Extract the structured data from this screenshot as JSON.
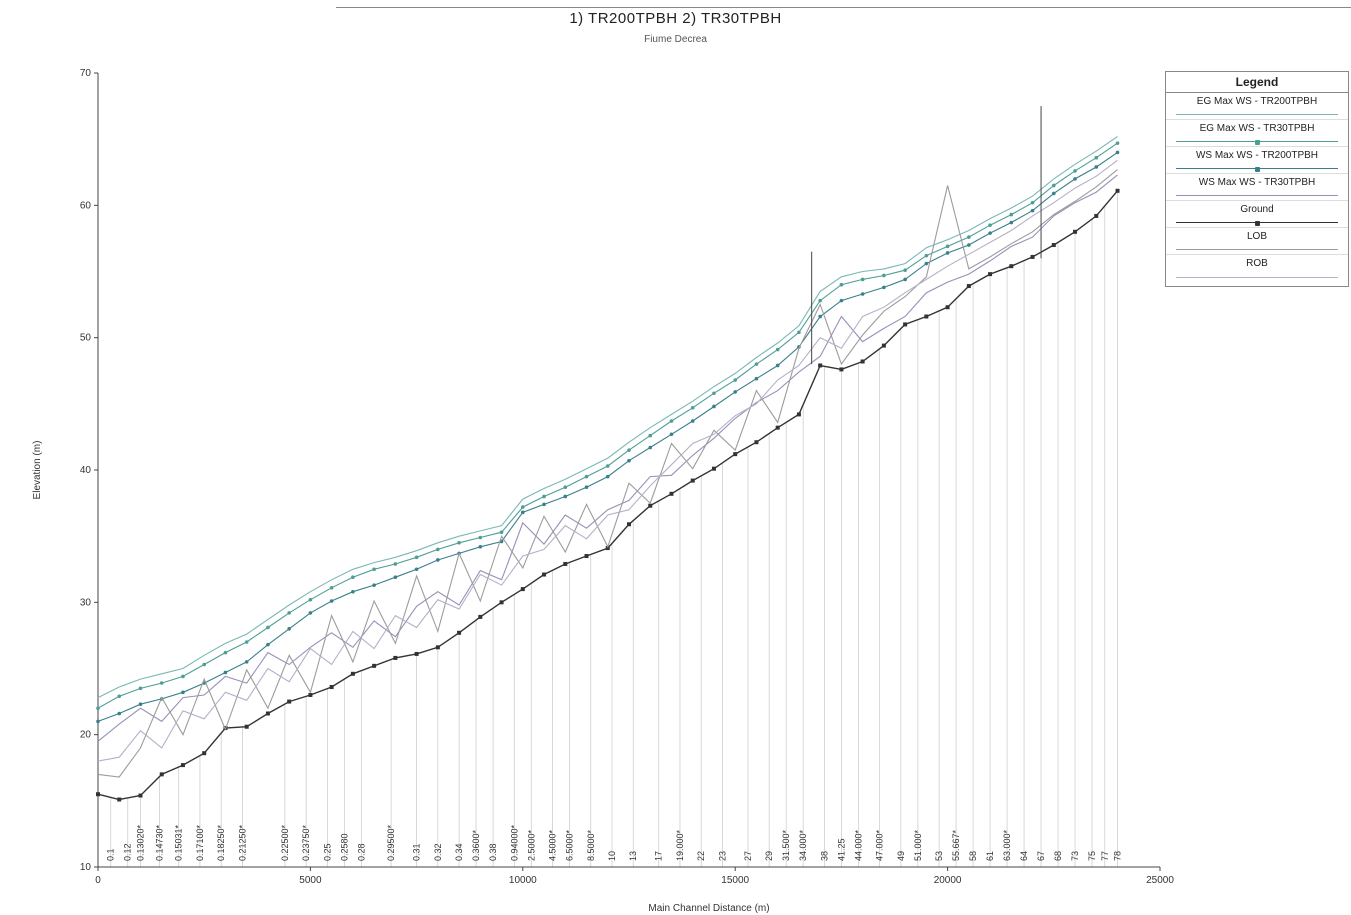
{
  "chart_data": {
    "type": "line",
    "title": "1) TR200TPBH   2) TR30TPBH",
    "subtitle": "Fiume Decrea",
    "xlabel": "Main Channel Distance (m)",
    "ylabel": "Elevation (m)",
    "xlim": [
      0,
      25000
    ],
    "ylim": [
      10,
      70
    ],
    "x_ticks": [
      0,
      5000,
      10000,
      15000,
      20000,
      25000
    ],
    "y_ticks": [
      10,
      20,
      30,
      40,
      50,
      60,
      70
    ],
    "grid": false,
    "legend_position": "right",
    "legend_title": "Legend",
    "series": [
      {
        "name": "EG  Max WS - TR200TPBH",
        "color": "#7ab8b5",
        "marker": "none",
        "x": [
          0,
          500,
          1000,
          1500,
          2000,
          2500,
          3000,
          3500,
          4000,
          4500,
          5000,
          5500,
          6000,
          6500,
          7000,
          7500,
          8000,
          8500,
          9000,
          9500,
          10000,
          10500,
          11000,
          11500,
          12000,
          12500,
          13000,
          13500,
          14000,
          14500,
          15000,
          15500,
          16000,
          16500,
          17000,
          17500,
          18000,
          18500,
          19000,
          19500,
          20000,
          20500,
          21000,
          21500,
          22000,
          22500,
          23000,
          23500,
          24000
        ],
        "y": [
          22.8,
          23.6,
          24.2,
          24.6,
          25.0,
          26.0,
          26.9,
          27.6,
          28.7,
          29.8,
          30.8,
          31.7,
          32.5,
          33.0,
          33.4,
          33.9,
          34.5,
          35.0,
          35.4,
          35.8,
          37.8,
          38.6,
          39.3,
          40.1,
          40.9,
          42.1,
          43.2,
          44.2,
          45.2,
          46.3,
          47.3,
          48.5,
          49.6,
          50.9,
          53.5,
          54.6,
          55.0,
          55.2,
          55.6,
          56.8,
          57.4,
          58.1,
          59.0,
          59.8,
          60.7,
          62.0,
          63.1,
          64.1,
          65.2
        ]
      },
      {
        "name": "EG  Max WS - TR30TPBH",
        "color": "#4e9e96",
        "marker": "dot",
        "x": [
          0,
          500,
          1000,
          1500,
          2000,
          2500,
          3000,
          3500,
          4000,
          4500,
          5000,
          5500,
          6000,
          6500,
          7000,
          7500,
          8000,
          8500,
          9000,
          9500,
          10000,
          10500,
          11000,
          11500,
          12000,
          12500,
          13000,
          13500,
          14000,
          14500,
          15000,
          15500,
          16000,
          16500,
          17000,
          17500,
          18000,
          18500,
          19000,
          19500,
          20000,
          20500,
          21000,
          21500,
          22000,
          22500,
          23000,
          23500,
          24000
        ],
        "y": [
          22.0,
          22.9,
          23.5,
          23.9,
          24.4,
          25.3,
          26.2,
          27.0,
          28.1,
          29.2,
          30.2,
          31.1,
          31.9,
          32.5,
          32.9,
          33.4,
          34.0,
          34.5,
          34.9,
          35.3,
          37.2,
          38.0,
          38.7,
          39.5,
          40.3,
          41.5,
          42.6,
          43.7,
          44.7,
          45.8,
          46.8,
          48.0,
          49.1,
          50.4,
          52.8,
          54.0,
          54.4,
          54.7,
          55.1,
          56.2,
          56.9,
          57.6,
          58.5,
          59.3,
          60.2,
          61.5,
          62.6,
          63.6,
          64.7
        ]
      },
      {
        "name": "WS  Max WS - TR200TPBH",
        "color": "#3a7f8c",
        "marker": "dot",
        "x": [
          0,
          500,
          1000,
          1500,
          2000,
          2500,
          3000,
          3500,
          4000,
          4500,
          5000,
          5500,
          6000,
          6500,
          7000,
          7500,
          8000,
          8500,
          9000,
          9500,
          10000,
          10500,
          11000,
          11500,
          12000,
          12500,
          13000,
          13500,
          14000,
          14500,
          15000,
          15500,
          16000,
          16500,
          17000,
          17500,
          18000,
          18500,
          19000,
          19500,
          20000,
          20500,
          21000,
          21500,
          22000,
          22500,
          23000,
          23500,
          24000
        ],
        "y": [
          21.0,
          21.6,
          22.3,
          22.7,
          23.2,
          23.9,
          24.7,
          25.5,
          26.8,
          28.0,
          29.2,
          30.1,
          30.8,
          31.3,
          31.9,
          32.5,
          33.2,
          33.7,
          34.2,
          34.6,
          36.8,
          37.4,
          38.0,
          38.7,
          39.5,
          40.7,
          41.7,
          42.7,
          43.7,
          44.8,
          45.9,
          46.9,
          47.9,
          49.3,
          51.6,
          52.8,
          53.3,
          53.8,
          54.4,
          55.6,
          56.4,
          57.0,
          57.9,
          58.7,
          59.6,
          60.9,
          62.0,
          62.9,
          64.0
        ]
      },
      {
        "name": "WS  Max WS - TR30TPBH",
        "color": "#9a8fb8",
        "marker": "none",
        "x": [
          0,
          500,
          1000,
          1500,
          2000,
          2500,
          3000,
          3500,
          4000,
          4500,
          5000,
          5500,
          6000,
          6500,
          7000,
          7500,
          8000,
          8500,
          9000,
          9500,
          10000,
          10500,
          11000,
          11500,
          12000,
          12500,
          13000,
          13500,
          14000,
          14500,
          15000,
          15500,
          16000,
          16500,
          17000,
          17500,
          18000,
          18500,
          19000,
          19500,
          20000,
          20500,
          21000,
          21500,
          22000,
          22500,
          23000,
          23500,
          24000
        ],
        "y": [
          19.5,
          20.8,
          22.0,
          21.0,
          22.8,
          23.0,
          24.4,
          23.9,
          26.2,
          25.3,
          26.6,
          27.7,
          26.6,
          28.6,
          27.4,
          29.7,
          30.8,
          29.8,
          32.4,
          31.7,
          36.0,
          34.4,
          36.6,
          35.6,
          37.0,
          37.7,
          39.5,
          39.6,
          41.1,
          42.4,
          43.9,
          45.1,
          46.0,
          47.4,
          48.6,
          51.6,
          49.7,
          50.7,
          51.6,
          53.4,
          54.2,
          54.8,
          55.8,
          56.9,
          57.6,
          59.2,
          60.2,
          61.0,
          62.3
        ]
      },
      {
        "name": "Ground",
        "color": "#333333",
        "marker": "square",
        "x": [
          0,
          500,
          1000,
          1500,
          2000,
          2500,
          3000,
          3500,
          4000,
          4500,
          5000,
          5500,
          6000,
          6500,
          7000,
          7500,
          8000,
          8500,
          9000,
          9500,
          10000,
          10500,
          11000,
          11500,
          12000,
          12500,
          13000,
          13500,
          14000,
          14500,
          15000,
          15500,
          16000,
          16500,
          17000,
          17500,
          18000,
          18500,
          19000,
          19500,
          20000,
          20500,
          21000,
          21500,
          22000,
          22500,
          23000,
          23500,
          24000
        ],
        "y": [
          15.5,
          15.1,
          15.4,
          17.0,
          17.7,
          18.6,
          20.5,
          20.6,
          21.6,
          22.5,
          23.0,
          23.6,
          24.6,
          25.2,
          25.8,
          26.1,
          26.6,
          27.7,
          28.9,
          30.0,
          31.0,
          32.1,
          32.9,
          33.5,
          34.1,
          35.9,
          37.3,
          38.2,
          39.2,
          40.1,
          41.2,
          42.1,
          43.2,
          44.2,
          47.9,
          47.6,
          48.2,
          49.4,
          51.0,
          51.6,
          52.3,
          53.9,
          54.8,
          55.4,
          56.1,
          57.0,
          58.0,
          59.2,
          61.1
        ]
      },
      {
        "name": "LOB",
        "color": "#9c9c9c",
        "marker": "none",
        "x": [
          0,
          500,
          1000,
          1500,
          2000,
          2500,
          3000,
          3500,
          4000,
          4500,
          5000,
          5500,
          6000,
          6500,
          7000,
          7500,
          8000,
          8500,
          9000,
          9500,
          10000,
          10500,
          11000,
          11500,
          12000,
          12500,
          13000,
          13500,
          14000,
          14500,
          15000,
          15500,
          16000,
          16500,
          17000,
          17500,
          18000,
          18500,
          19000,
          19500,
          20000,
          20500,
          21000,
          21500,
          22000,
          22500,
          23000,
          23500,
          24000
        ],
        "y": [
          17.0,
          16.8,
          19.0,
          22.8,
          20.0,
          24.2,
          20.4,
          24.9,
          22.0,
          26.0,
          23.2,
          29.0,
          25.5,
          30.1,
          26.9,
          32.0,
          27.8,
          33.7,
          30.1,
          35.0,
          32.6,
          36.5,
          33.8,
          37.4,
          34.2,
          39.0,
          37.5,
          42.0,
          40.1,
          43.0,
          41.5,
          46.0,
          43.6,
          49.2,
          52.5,
          48.0,
          50.2,
          52.0,
          53.1,
          54.6,
          61.5,
          55.2,
          56.1,
          57.1,
          58.0,
          59.3,
          60.3,
          61.4,
          62.7
        ]
      },
      {
        "name": "ROB",
        "color": "#b6b0c8",
        "marker": "none",
        "x": [
          0,
          500,
          1000,
          1500,
          2000,
          2500,
          3000,
          3500,
          4000,
          4500,
          5000,
          5500,
          6000,
          6500,
          7000,
          7500,
          8000,
          8500,
          9000,
          9500,
          10000,
          10500,
          11000,
          11500,
          12000,
          12500,
          13000,
          13500,
          14000,
          14500,
          15000,
          15500,
          16000,
          16500,
          17000,
          17500,
          18000,
          18500,
          19000,
          19500,
          20000,
          20500,
          21000,
          21500,
          22000,
          22500,
          23000,
          23500,
          24000
        ],
        "y": [
          18.0,
          18.3,
          20.3,
          19.0,
          21.8,
          21.2,
          23.2,
          22.6,
          25.0,
          24.0,
          26.5,
          25.3,
          27.8,
          26.5,
          29.0,
          28.1,
          30.2,
          29.5,
          32.1,
          31.3,
          33.5,
          34.0,
          35.8,
          34.8,
          36.6,
          37.0,
          38.8,
          40.4,
          42.0,
          42.7,
          44.1,
          45.0,
          46.8,
          47.9,
          50.0,
          49.2,
          51.6,
          52.3,
          53.4,
          54.4,
          55.4,
          56.3,
          57.2,
          58.1,
          59.2,
          60.2,
          61.3,
          62.2,
          63.4
        ]
      }
    ],
    "station_labels": [
      "0.1",
      "0.12",
      "0.13020*",
      "0.14730*",
      "0.15031*",
      "0.17100*",
      "0.18250*",
      "0.21250*",
      "0.22500*",
      "0.23750*",
      "0.25",
      "0.2580",
      "0.28",
      "0.29500*",
      "0.31",
      "0.32",
      "0.34",
      "0.3600*",
      "0.38",
      "0.94000*",
      "2.5000*",
      "4.5000*",
      "6.5000*",
      "8.5000*",
      "10",
      "13",
      "17",
      "19.000*",
      "22",
      "23",
      "27",
      "29",
      "31.500*",
      "34.000*",
      "38",
      "41.25",
      "44.000*",
      "47.000*",
      "49",
      "51.000*",
      "53",
      "55.667*",
      "58",
      "61",
      "63.000*",
      "64",
      "67",
      "68",
      "73",
      "75",
      "77",
      "78"
    ],
    "station_x": [
      300,
      700,
      1000,
      1450,
      1900,
      2400,
      2900,
      3400,
      4400,
      4900,
      5400,
      5800,
      6200,
      6900,
      7500,
      8000,
      8500,
      8900,
      9300,
      9800,
      10200,
      10700,
      11100,
      11600,
      12100,
      12600,
      13200,
      13700,
      14200,
      14700,
      15300,
      15800,
      16200,
      16600,
      17100,
      17500,
      17900,
      18400,
      18900,
      19300,
      19800,
      20200,
      20600,
      21000,
      21400,
      21800,
      22200,
      22600,
      23000,
      23400,
      23700,
      24000
    ]
  }
}
